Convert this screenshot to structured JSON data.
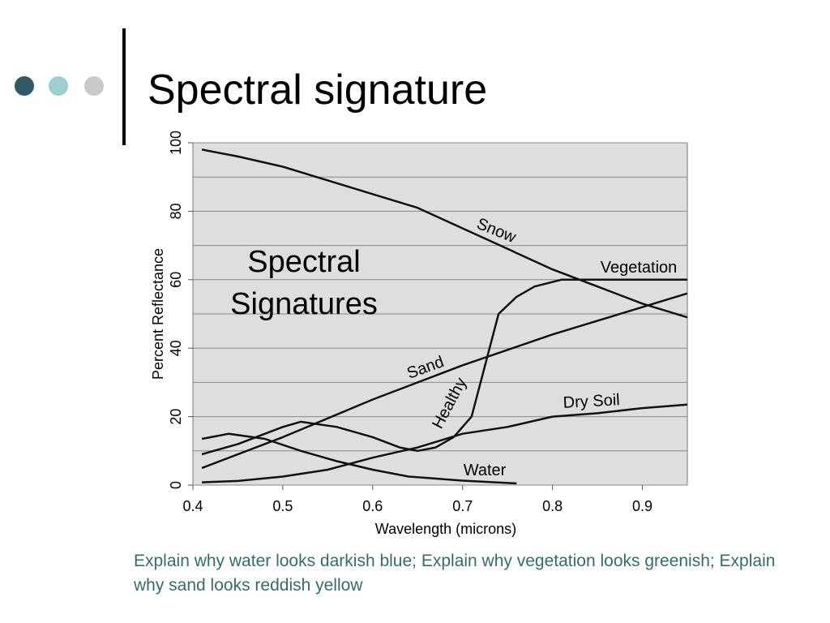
{
  "slide_title": "Spectral signature",
  "caption": "Explain why water looks darkish blue; Explain why vegetation looks greenish; Explain why sand looks reddish yellow",
  "chart_data": {
    "type": "line",
    "x_label": "Wavelength (microns)",
    "y_label": "Percent  Reflectance",
    "annotations": [
      "Spectral",
      "Signatures",
      "Healthy"
    ],
    "xlim": [
      0.4,
      0.95
    ],
    "ylim": [
      0,
      100
    ],
    "xticks": [
      0.4,
      0.5,
      0.6,
      0.7,
      0.8,
      0.9
    ],
    "yticks": [
      0,
      20,
      40,
      60,
      80,
      100
    ],
    "minor_yticks": [
      10,
      30,
      50,
      70,
      90
    ],
    "grid": true,
    "series": [
      {
        "name": "Snow",
        "color": "#111111",
        "x": [
          0.41,
          0.45,
          0.5,
          0.55,
          0.6,
          0.65,
          0.7,
          0.75,
          0.8,
          0.85,
          0.9,
          0.95
        ],
        "values": [
          98,
          96,
          93,
          89,
          85,
          81,
          75,
          69,
          63,
          58,
          53,
          49
        ]
      },
      {
        "name": "Vegetation",
        "color": "#111111",
        "x": [
          0.41,
          0.45,
          0.5,
          0.52,
          0.56,
          0.6,
          0.63,
          0.65,
          0.67,
          0.69,
          0.71,
          0.72,
          0.73,
          0.74,
          0.76,
          0.78,
          0.81,
          0.95
        ],
        "values": [
          9,
          12,
          17,
          18.5,
          17,
          14,
          11,
          10,
          11,
          14,
          20,
          30,
          40,
          50,
          55,
          58,
          60,
          60
        ]
      },
      {
        "name": "Sand",
        "color": "#111111",
        "x": [
          0.41,
          0.5,
          0.6,
          0.7,
          0.8,
          0.9,
          0.95
        ],
        "values": [
          5,
          14,
          25,
          35,
          44,
          52,
          56
        ]
      },
      {
        "name": "Dry   Soil",
        "color": "#111111",
        "x": [
          0.41,
          0.45,
          0.5,
          0.55,
          0.6,
          0.65,
          0.7,
          0.75,
          0.8,
          0.85,
          0.9,
          0.95
        ],
        "values": [
          0.8,
          1.2,
          2.5,
          4.5,
          8,
          11,
          15,
          17,
          20,
          21,
          22.5,
          23.5
        ]
      },
      {
        "name": "Water",
        "color": "#111111",
        "x": [
          0.41,
          0.44,
          0.48,
          0.52,
          0.56,
          0.6,
          0.64,
          0.7,
          0.76
        ],
        "values": [
          13.5,
          15,
          13.5,
          10,
          7,
          4.5,
          2.5,
          1.3,
          0.5
        ]
      }
    ]
  }
}
